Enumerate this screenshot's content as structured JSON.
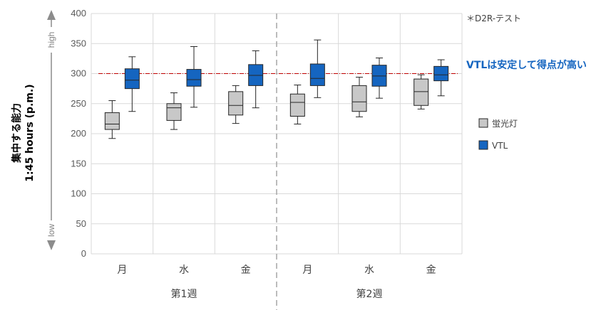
{
  "chart_data": {
    "type": "boxplot",
    "y_label_line1": "集中する能力",
    "y_label_line2": "1:45 hours (p.m.)",
    "ylim": [
      0,
      400
    ],
    "y_ticks": [
      0,
      50,
      100,
      150,
      200,
      250,
      300,
      350,
      400
    ],
    "scale_high": "high",
    "scale_low": "low",
    "note": "＊D2R-テスト",
    "callout": "VTLは安定して得点が高い",
    "reference_line": 300,
    "groups": [
      "第1週",
      "第2週"
    ],
    "categories": [
      "月",
      "水",
      "金",
      "月",
      "水",
      "金"
    ],
    "series": [
      {
        "name": "蛍光灯",
        "color": "#c8c8c8",
        "boxes": [
          {
            "min": 192,
            "q1": 207,
            "median": 216,
            "q3": 235,
            "max": 255
          },
          {
            "min": 207,
            "q1": 222,
            "median": 243,
            "q3": 250,
            "max": 268
          },
          {
            "min": 217,
            "q1": 231,
            "median": 247,
            "q3": 270,
            "max": 280
          },
          {
            "min": 216,
            "q1": 229,
            "median": 252,
            "q3": 266,
            "max": 281
          },
          {
            "min": 228,
            "q1": 237,
            "median": 253,
            "q3": 280,
            "max": 294
          },
          {
            "min": 241,
            "q1": 247,
            "median": 270,
            "q3": 291,
            "max": 298
          }
        ]
      },
      {
        "name": "VTL",
        "color": "#1565c0",
        "boxes": [
          {
            "min": 237,
            "q1": 275,
            "median": 289,
            "q3": 308,
            "max": 328
          },
          {
            "min": 244,
            "q1": 279,
            "median": 290,
            "q3": 307,
            "max": 345
          },
          {
            "min": 243,
            "q1": 280,
            "median": 297,
            "q3": 315,
            "max": 338
          },
          {
            "min": 260,
            "q1": 280,
            "median": 292,
            "q3": 316,
            "max": 356
          },
          {
            "min": 259,
            "q1": 279,
            "median": 296,
            "q3": 314,
            "max": 326
          },
          {
            "min": 263,
            "q1": 288,
            "median": 298,
            "q3": 312,
            "max": 323
          }
        ]
      }
    ],
    "grid": true,
    "legend_position": "right",
    "colors": {
      "grid": "#d9d9d9",
      "callout": "#1565c0",
      "reference_line": "#c00000",
      "box_stroke": "#262626",
      "arrow": "#8c8c8c",
      "divider": "#a6a6a6"
    }
  }
}
